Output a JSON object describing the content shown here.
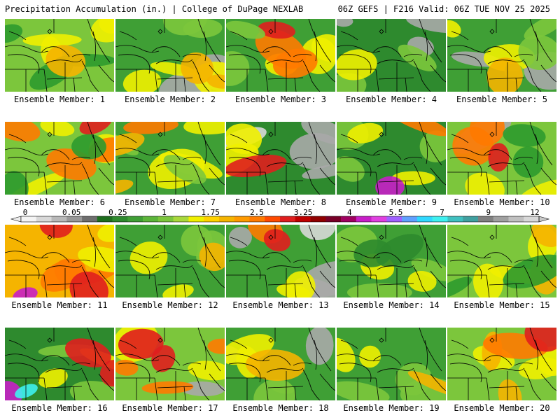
{
  "header": {
    "left": "Precipitation Accumulation (in.) | College of DuPage NEXLAB",
    "right": "06Z GEFS | F216 Valid: 06Z TUE NOV 25 2025"
  },
  "caption_prefix": "Ensemble Member:",
  "members": [
    {
      "id": 1,
      "label": "Ensemble Member: 1",
      "base": "#7cc63c",
      "blobs": [
        [
          "#f0f000",
          4
        ],
        [
          "#2e9a2e",
          3
        ],
        [
          "#f5b400",
          1
        ]
      ]
    },
    {
      "id": 2,
      "label": "Ensemble Member: 2",
      "base": "#3f9f35",
      "blobs": [
        [
          "#a8a8a8",
          2
        ],
        [
          "#f0f000",
          3
        ],
        [
          "#f5b400",
          2
        ],
        [
          "#7cc63c",
          2
        ]
      ]
    },
    {
      "id": 3,
      "label": "Ensemble Member: 3",
      "base": "#3f9f35",
      "blobs": [
        [
          "#f0f000",
          3
        ],
        [
          "#ff7a00",
          2
        ],
        [
          "#e01e1e",
          1
        ],
        [
          "#7cc63c",
          2
        ]
      ]
    },
    {
      "id": 4,
      "label": "Ensemble Member: 4",
      "base": "#2e8a2e",
      "blobs": [
        [
          "#a8a8a8",
          3
        ],
        [
          "#7cc63c",
          2
        ],
        [
          "#f0f000",
          1
        ]
      ]
    },
    {
      "id": 5,
      "label": "Ensemble Member: 5",
      "base": "#3f9f35",
      "blobs": [
        [
          "#a8a8a8",
          2
        ],
        [
          "#f0f000",
          2
        ],
        [
          "#7cc63c",
          3
        ],
        [
          "#f5b400",
          1
        ]
      ]
    },
    {
      "id": 6,
      "label": "Ensemble Member: 6",
      "base": "#7cc63c",
      "blobs": [
        [
          "#f0f000",
          3
        ],
        [
          "#ff7a00",
          3
        ],
        [
          "#e01e1e",
          1
        ],
        [
          "#2e9a2e",
          2
        ]
      ]
    },
    {
      "id": 7,
      "label": "Ensemble Member: 7",
      "base": "#3f9f35",
      "blobs": [
        [
          "#f0f000",
          3
        ],
        [
          "#7cc63c",
          2
        ],
        [
          "#ff7a00",
          1
        ],
        [
          "#f5b400",
          2
        ]
      ]
    },
    {
      "id": 8,
      "label": "Ensemble Member: 8",
      "base": "#2e8a2e",
      "blobs": [
        [
          "#a8a8a8",
          3
        ],
        [
          "#d8d8d8",
          1
        ],
        [
          "#f0f000",
          2
        ],
        [
          "#e01e1e",
          1
        ]
      ]
    },
    {
      "id": 9,
      "label": "Ensemble Member: 9",
      "base": "#2e8a2e",
      "blobs": [
        [
          "#7cc63c",
          3
        ],
        [
          "#f0f000",
          2
        ],
        [
          "#ff7a00",
          1
        ],
        [
          "#c81ec8",
          1
        ]
      ]
    },
    {
      "id": 10,
      "label": "Ensemble Member: 10",
      "base": "#7cc63c",
      "blobs": [
        [
          "#a8a8a8",
          1
        ],
        [
          "#f0f000",
          2
        ],
        [
          "#ff7a00",
          2
        ],
        [
          "#e01e1e",
          1
        ],
        [
          "#2e9a2e",
          2
        ]
      ]
    },
    {
      "id": 11,
      "label": "Ensemble Member: 11",
      "base": "#f5b400",
      "blobs": [
        [
          "#ff7a00",
          3
        ],
        [
          "#e01e1e",
          2
        ],
        [
          "#c81ec8",
          1
        ],
        [
          "#f0f000",
          2
        ]
      ]
    },
    {
      "id": 12,
      "label": "Ensemble Member: 12",
      "base": "#3f9f35",
      "blobs": [
        [
          "#7cc63c",
          3
        ],
        [
          "#f0f000",
          2
        ],
        [
          "#f5b400",
          1
        ]
      ]
    },
    {
      "id": 13,
      "label": "Ensemble Member: 13",
      "base": "#3f9f35",
      "blobs": [
        [
          "#a8a8a8",
          3
        ],
        [
          "#d8d8d8",
          1
        ],
        [
          "#f0f000",
          2
        ],
        [
          "#ff7a00",
          1
        ],
        [
          "#e01e1e",
          1
        ]
      ]
    },
    {
      "id": 14,
      "label": "Ensemble Member: 14",
      "base": "#3f9f35",
      "blobs": [
        [
          "#7cc63c",
          3
        ],
        [
          "#f0f000",
          2
        ],
        [
          "#2e8a2e",
          2
        ]
      ]
    },
    {
      "id": 15,
      "label": "Ensemble Member: 15",
      "base": "#7cc63c",
      "blobs": [
        [
          "#f0f000",
          3
        ],
        [
          "#f5b400",
          2
        ],
        [
          "#2e9a2e",
          2
        ]
      ]
    },
    {
      "id": 16,
      "label": "Ensemble Member: 16",
      "base": "#2e8a2e",
      "blobs": [
        [
          "#7cc63c",
          2
        ],
        [
          "#f0f000",
          2
        ],
        [
          "#e01e1e",
          2
        ],
        [
          "#c81ec8",
          1
        ],
        [
          "#3ef0f0",
          1
        ]
      ]
    },
    {
      "id": 17,
      "label": "Ensemble Member: 17",
      "base": "#7cc63c",
      "blobs": [
        [
          "#a8a8a8",
          1
        ],
        [
          "#f0f000",
          2
        ],
        [
          "#ff7a00",
          3
        ],
        [
          "#e01e1e",
          2
        ]
      ]
    },
    {
      "id": 18,
      "label": "Ensemble Member: 18",
      "base": "#3f9f35",
      "blobs": [
        [
          "#a8a8a8",
          2
        ],
        [
          "#7cc63c",
          2
        ],
        [
          "#f0f000",
          2
        ],
        [
          "#f5b400",
          1
        ]
      ]
    },
    {
      "id": 19,
      "label": "Ensemble Member: 19",
      "base": "#3f9f35",
      "blobs": [
        [
          "#7cc63c",
          3
        ],
        [
          "#f0f000",
          2
        ],
        [
          "#f5b400",
          1
        ]
      ]
    },
    {
      "id": 20,
      "label": "Ensemble Member: 20",
      "base": "#7cc63c",
      "blobs": [
        [
          "#f0f000",
          3
        ],
        [
          "#f5b400",
          2
        ],
        [
          "#ff7a00",
          1
        ],
        [
          "#e01e1e",
          1
        ]
      ]
    }
  ],
  "colorbar": {
    "ticks": [
      "0",
      "0.05",
      "0.25",
      "1",
      "1.75",
      "2.5",
      "3.25",
      "4",
      "5.5",
      "7",
      "9",
      "12"
    ],
    "colors": [
      "#f4f4f4",
      "#d8d8d8",
      "#b8b8b8",
      "#989898",
      "#6e6e6e",
      "#1e6e1e",
      "#2e8a2e",
      "#3f9f35",
      "#5cb53a",
      "#7cc63c",
      "#a8d83c",
      "#f0f000",
      "#ffd200",
      "#f5b400",
      "#ff9a00",
      "#ff7a00",
      "#ff4a00",
      "#e01e1e",
      "#c00000",
      "#900000",
      "#780028",
      "#a00060",
      "#c81ec8",
      "#e040e0",
      "#a060ff",
      "#60a0ff",
      "#30d8ff",
      "#3ef0f0",
      "#40c0c0",
      "#40a0a0",
      "#808080",
      "#a0a0a0",
      "#c0c0c0",
      "#d8d8d8"
    ]
  }
}
